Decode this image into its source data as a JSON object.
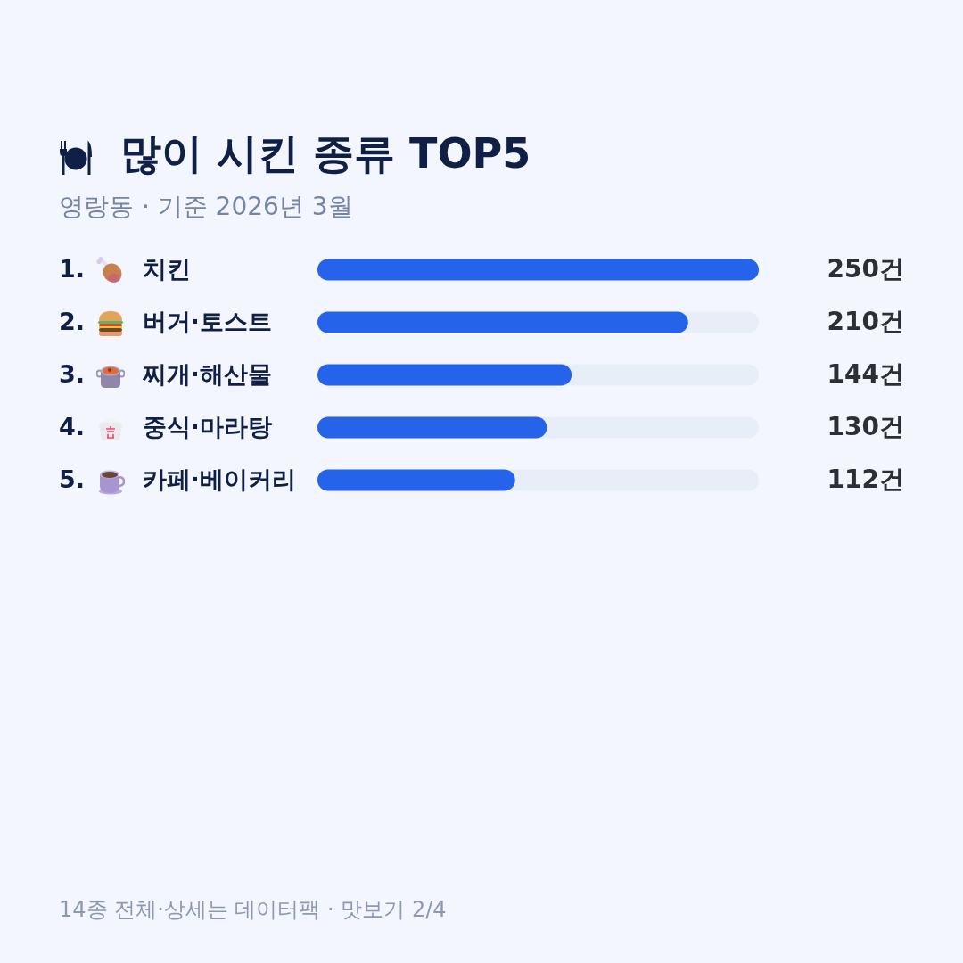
{
  "chart_data": {
    "type": "bar",
    "orientation": "horizontal",
    "title": "많이 시킨 종류 TOP5",
    "subtitle": "영랑동 · 기준 2026년 3월",
    "categories": [
      "치킨",
      "버거·토스트",
      "찌개·해산물",
      "중식·마라탕",
      "카페·베이커리"
    ],
    "values": [
      250,
      210,
      144,
      130,
      112
    ],
    "value_labels": [
      "250건",
      "210건",
      "144건",
      "130건",
      "112건"
    ],
    "color": "#2563eb",
    "xlim": [
      0,
      250
    ],
    "tick_labels": "y",
    "annotations": [
      "1.",
      "2.",
      "3.",
      "4.",
      "5.",
      "14종 전체·상세는 데이터팩 · 맛보기 2/4"
    ]
  }
}
